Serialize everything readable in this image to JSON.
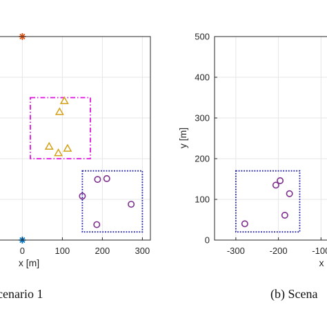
{
  "colors": {
    "grid": "#e6e6e6",
    "axis": "#262626",
    "bs_top": "#d95319",
    "bs_bottom": "#0072bd",
    "zone_magenta": "#e011e0",
    "zone_blue": "#1f1fa8",
    "triangles": "#d4a017",
    "circles": "#7e2f8e"
  },
  "chart_data": [
    {
      "type": "scatter",
      "caption": "cenario 1",
      "xlabel": "x [m]",
      "ylabel": "",
      "xlim": [
        -80,
        320
      ],
      "ylim": [
        0,
        500
      ],
      "xticks": [
        0,
        100,
        200,
        300
      ],
      "xtick_labels": [
        "0",
        "100",
        "200",
        "300"
      ],
      "grid": true,
      "base_stations": [
        {
          "marker": "star",
          "color": "#d95319",
          "x": 0,
          "y": 500
        },
        {
          "marker": "star",
          "color": "#0072bd",
          "x": 0,
          "y": 0
        }
      ],
      "regions": [
        {
          "style": "dash-dot",
          "color": "#e011e0",
          "x": [
            20,
            170
          ],
          "y": [
            200,
            350
          ]
        },
        {
          "style": "dotted",
          "color": "#1f1fa8",
          "x": [
            150,
            300
          ],
          "y": [
            20,
            170
          ]
        }
      ],
      "series": [
        {
          "marker": "triangle",
          "color": "#d4a017",
          "points": [
            [
              105,
              342
            ],
            [
              93,
              315
            ],
            [
              67,
              230
            ],
            [
              90,
              214
            ],
            [
              113,
              225
            ]
          ]
        },
        {
          "marker": "circle",
          "color": "#7e2f8e",
          "points": [
            [
              188,
              149
            ],
            [
              211,
              151
            ],
            [
              150,
              108
            ],
            [
              272,
              88
            ],
            [
              186,
              38
            ]
          ]
        }
      ]
    },
    {
      "type": "scatter",
      "caption": "(b) Scena",
      "xlabel": "x",
      "ylabel": "y [m]",
      "xlim": [
        -350,
        -60
      ],
      "ylim": [
        0,
        500
      ],
      "xticks": [
        -300,
        -200,
        -100
      ],
      "xtick_labels": [
        "-300",
        "-200",
        "-100"
      ],
      "yticks": [
        0,
        100,
        200,
        300,
        400,
        500
      ],
      "ytick_labels": [
        "0",
        "100",
        "200",
        "300",
        "400",
        "500"
      ],
      "grid": true,
      "regions": [
        {
          "style": "dotted",
          "color": "#1f1fa8",
          "x": [
            -300,
            -150
          ],
          "y": [
            20,
            170
          ]
        }
      ],
      "series": [
        {
          "marker": "circle",
          "color": "#7e2f8e",
          "points": [
            [
              -279,
              40
            ],
            [
              -206,
              135
            ],
            [
              -196,
              146
            ],
            [
              -174,
              114
            ],
            [
              -185,
              61
            ]
          ]
        }
      ]
    }
  ]
}
